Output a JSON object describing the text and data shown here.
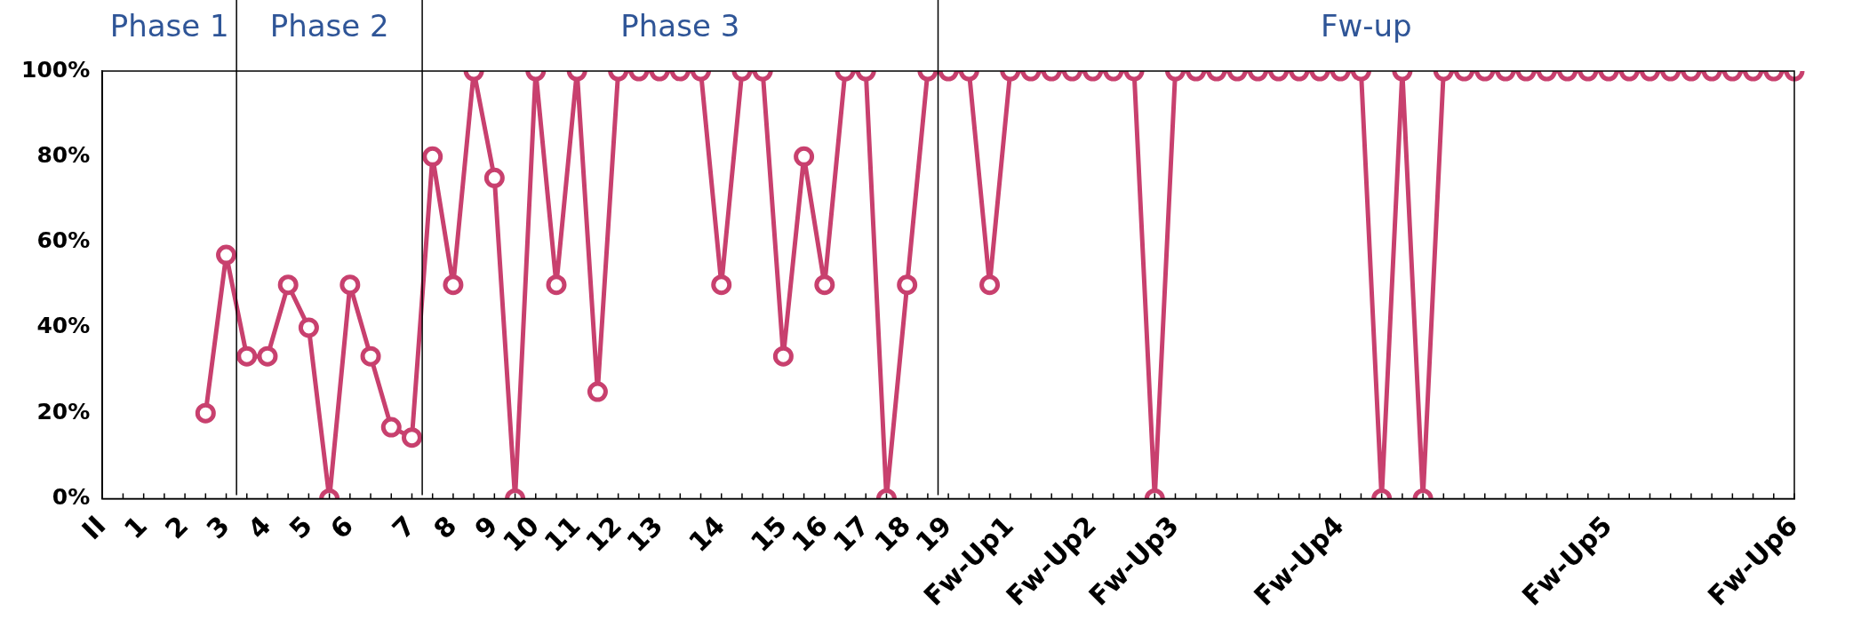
{
  "chart_data": {
    "type": "line",
    "categories": [
      "II",
      null,
      "1",
      null,
      "2",
      null,
      "3",
      null,
      "4",
      null,
      "5",
      null,
      "6",
      null,
      null,
      "7",
      null,
      "8",
      null,
      "9",
      null,
      "10",
      null,
      "11",
      null,
      "12",
      null,
      "13",
      null,
      null,
      "14",
      null,
      null,
      "15",
      null,
      "16",
      null,
      "17",
      null,
      "18",
      null,
      "19",
      null,
      null,
      "Fw-Up1",
      null,
      null,
      null,
      "Fw-Up2",
      null,
      null,
      null,
      "Fw-Up3",
      null,
      null,
      null,
      null,
      null,
      null,
      null,
      "Fw-Up4",
      null,
      null,
      null,
      null,
      null,
      null,
      null,
      null,
      null,
      null,
      null,
      null,
      "Fw-Up5",
      null,
      null,
      null,
      null,
      null,
      null,
      null,
      null,
      "Fw-Up6"
    ],
    "series": [
      {
        "color": "#c8406e",
        "values": [
          null,
          null,
          null,
          null,
          null,
          20,
          57,
          33.3,
          33.3,
          50,
          40,
          0,
          50,
          33.3,
          16.7,
          14.3,
          80,
          50,
          100,
          75,
          0,
          100,
          50,
          100,
          25,
          100,
          100,
          100,
          100,
          100,
          50,
          100,
          100,
          33.3,
          80,
          50,
          100,
          100,
          0,
          50,
          100,
          100,
          100,
          50,
          100,
          100,
          100,
          100,
          100,
          100,
          100,
          0,
          100,
          100,
          100,
          100,
          100,
          100,
          100,
          100,
          100,
          100,
          0,
          100,
          0,
          100,
          100,
          100,
          100,
          100,
          100,
          100,
          100,
          100,
          100,
          100,
          100,
          100,
          100,
          100,
          100,
          100,
          100
        ]
      }
    ],
    "ylim": [
      0,
      100
    ],
    "yticks": [
      {
        "value": 0,
        "label": "0%"
      },
      {
        "value": 20,
        "label": "20%"
      },
      {
        "value": 40,
        "label": "40%"
      },
      {
        "value": 60,
        "label": "60%"
      },
      {
        "value": 80,
        "label": "80%"
      },
      {
        "value": 100,
        "label": "100%"
      }
    ],
    "annotations": [
      "Phase 1",
      "Phase 2",
      "Phase 3",
      "Fw-up"
    ],
    "marker": "circle",
    "line_style": "solid",
    "grid": false,
    "legend": false
  }
}
